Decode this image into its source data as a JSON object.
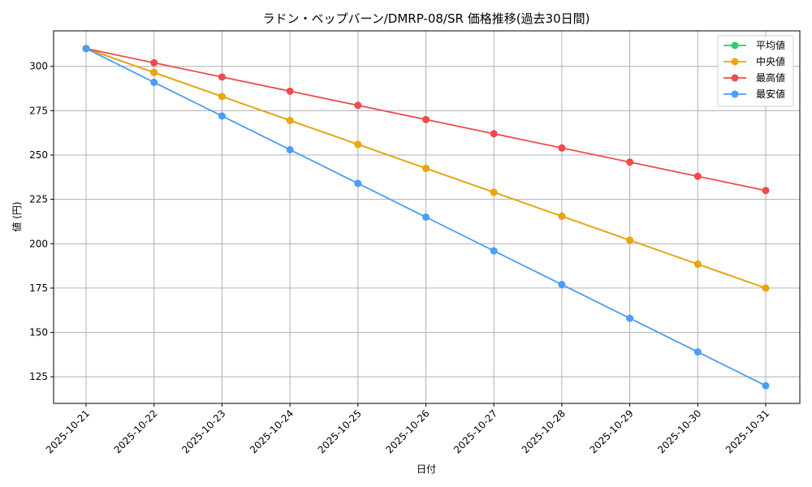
{
  "chart_data": {
    "type": "line",
    "title": "ラドン・ベップバーン/DMRP-08/SR 価格推移(過去30日間)",
    "xlabel": "日付",
    "ylabel": "値 (円)",
    "categories": [
      "2025-10-21",
      "2025-10-22",
      "2025-10-23",
      "2025-10-24",
      "2025-10-25",
      "2025-10-26",
      "2025-10-27",
      "2025-10-28",
      "2025-10-29",
      "2025-10-30",
      "2025-10-31"
    ],
    "ylim": [
      110,
      320
    ],
    "yticks": [
      125,
      150,
      175,
      200,
      225,
      250,
      275,
      300
    ],
    "grid": true,
    "legend_position": "top-right",
    "series": [
      {
        "name": "平均値",
        "color": "#2ecc71",
        "values": [
          310,
          296.5,
          283,
          269.5,
          256,
          242.5,
          229,
          215.5,
          202,
          188.5,
          175
        ]
      },
      {
        "name": "中央値",
        "color": "#f0a30a",
        "values": [
          310,
          296.5,
          283,
          269.5,
          256,
          242.5,
          229,
          215.5,
          202,
          188.5,
          175
        ]
      },
      {
        "name": "最高値",
        "color": "#ef4b4b",
        "values": [
          310,
          302,
          294,
          286,
          278,
          270,
          262,
          254,
          246,
          238,
          230
        ]
      },
      {
        "name": "最安値",
        "color": "#4a9df8",
        "values": [
          310,
          291,
          272,
          253,
          234,
          215,
          196,
          177,
          158,
          139,
          120
        ]
      }
    ]
  }
}
